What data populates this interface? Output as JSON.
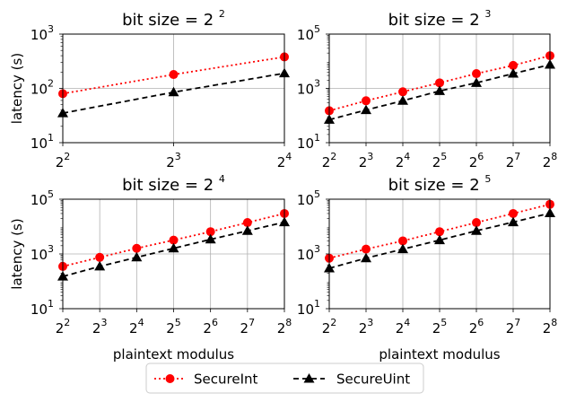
{
  "figure": {
    "legend": {
      "position": "lower-center",
      "entries": [
        {
          "name": "SecureInt",
          "color": "#ff0000",
          "marker": "circle",
          "linestyle": "dotted"
        },
        {
          "name": "SecureUint",
          "color": "#000000",
          "marker": "triangle",
          "linestyle": "dashed"
        }
      ]
    }
  },
  "chart_data": [
    {
      "type": "line",
      "title": "bit size = 2",
      "title_exp": "2",
      "xlabel": "",
      "ylabel": "latency (s)",
      "x": [
        2,
        3,
        4
      ],
      "x_ticklabels": [
        {
          "base": "2",
          "exp": "2"
        },
        {
          "base": "2",
          "exp": "3"
        },
        {
          "base": "2",
          "exp": "4"
        }
      ],
      "yscale": "log",
      "ylim": [
        10,
        1000
      ],
      "y_ticks": [
        10,
        100,
        1000
      ],
      "y_ticklabels": [
        {
          "base": "10",
          "exp": "1"
        },
        {
          "base": "10",
          "exp": "2"
        },
        {
          "base": "10",
          "exp": "3"
        }
      ],
      "grid": true,
      "series": [
        {
          "name": "SecureInt",
          "values": [
            80,
            180,
            380
          ]
        },
        {
          "name": "SecureUint",
          "values": [
            35,
            85,
            190
          ]
        }
      ]
    },
    {
      "type": "line",
      "title": "bit size = 2",
      "title_exp": "3",
      "xlabel": "",
      "ylabel": "",
      "x": [
        2,
        3,
        4,
        5,
        6,
        7,
        8
      ],
      "x_ticklabels": [
        {
          "base": "2",
          "exp": "2"
        },
        {
          "base": "2",
          "exp": "3"
        },
        {
          "base": "2",
          "exp": "4"
        },
        {
          "base": "2",
          "exp": "5"
        },
        {
          "base": "2",
          "exp": "6"
        },
        {
          "base": "2",
          "exp": "7"
        },
        {
          "base": "2",
          "exp": "8"
        }
      ],
      "yscale": "log",
      "ylim": [
        10,
        100000
      ],
      "y_ticks": [
        10,
        1000,
        100000
      ],
      "y_ticklabels": [
        {
          "base": "10",
          "exp": "1"
        },
        {
          "base": "10",
          "exp": "3"
        },
        {
          "base": "10",
          "exp": "5"
        }
      ],
      "grid": true,
      "series": [
        {
          "name": "SecureInt",
          "values": [
            150,
            350,
            750,
            1600,
            3500,
            7000,
            16000
          ]
        },
        {
          "name": "SecureUint",
          "values": [
            70,
            160,
            350,
            800,
            1600,
            3500,
            7500
          ]
        }
      ]
    },
    {
      "type": "line",
      "title": "bit size = 2",
      "title_exp": "4",
      "xlabel": "plaintext modulus",
      "ylabel": "latency (s)",
      "x": [
        2,
        3,
        4,
        5,
        6,
        7,
        8
      ],
      "x_ticklabels": [
        {
          "base": "2",
          "exp": "2"
        },
        {
          "base": "2",
          "exp": "3"
        },
        {
          "base": "2",
          "exp": "4"
        },
        {
          "base": "2",
          "exp": "5"
        },
        {
          "base": "2",
          "exp": "6"
        },
        {
          "base": "2",
          "exp": "7"
        },
        {
          "base": "2",
          "exp": "8"
        }
      ],
      "yscale": "log",
      "ylim": [
        10,
        100000
      ],
      "y_ticks": [
        10,
        1000,
        100000
      ],
      "y_ticklabels": [
        {
          "base": "10",
          "exp": "1"
        },
        {
          "base": "10",
          "exp": "3"
        },
        {
          "base": "10",
          "exp": "5"
        }
      ],
      "grid": true,
      "series": [
        {
          "name": "SecureInt",
          "values": [
            350,
            750,
            1600,
            3200,
            6500,
            14000,
            30000
          ]
        },
        {
          "name": "SecureUint",
          "values": [
            150,
            350,
            750,
            1600,
            3400,
            7000,
            14500
          ]
        }
      ]
    },
    {
      "type": "line",
      "title": "bit size = 2",
      "title_exp": "5",
      "xlabel": "plaintext modulus",
      "ylabel": "",
      "x": [
        2,
        3,
        4,
        5,
        6,
        7,
        8
      ],
      "x_ticklabels": [
        {
          "base": "2",
          "exp": "2"
        },
        {
          "base": "2",
          "exp": "3"
        },
        {
          "base": "2",
          "exp": "4"
        },
        {
          "base": "2",
          "exp": "5"
        },
        {
          "base": "2",
          "exp": "6"
        },
        {
          "base": "2",
          "exp": "7"
        },
        {
          "base": "2",
          "exp": "8"
        }
      ],
      "yscale": "log",
      "ylim": [
        10,
        100000
      ],
      "y_ticks": [
        10,
        1000,
        100000
      ],
      "y_ticklabels": [
        {
          "base": "10",
          "exp": "1"
        },
        {
          "base": "10",
          "exp": "3"
        },
        {
          "base": "10",
          "exp": "5"
        }
      ],
      "grid": true,
      "series": [
        {
          "name": "SecureInt",
          "values": [
            700,
            1500,
            3000,
            6500,
            14000,
            30000,
            65000
          ]
        },
        {
          "name": "SecureUint",
          "values": [
            300,
            700,
            1500,
            3200,
            7000,
            14500,
            31000
          ]
        }
      ]
    }
  ]
}
